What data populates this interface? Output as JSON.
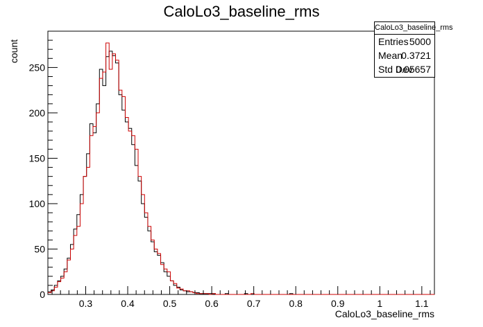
{
  "title": "CaloLo3_baseline_rms",
  "stats": {
    "name": "CaloLo3_baseline_rms",
    "rows": [
      {
        "label": "Entries",
        "value": "5000"
      },
      {
        "label": "Mean",
        "value": "0.3721"
      },
      {
        "label": "Std Dev",
        "value": "0.05657"
      }
    ]
  },
  "chart_data": {
    "type": "histogram",
    "title": "CaloLo3_baseline_rms",
    "xlabel": "CaloLo3_baseline_rms",
    "ylabel": "count",
    "xlim": [
      0.21,
      1.13
    ],
    "ylim": [
      0,
      290
    ],
    "bin_width": 0.00767,
    "x_ticks": [
      0.3,
      0.4,
      0.5,
      0.6,
      0.7,
      0.8,
      0.9,
      1,
      1.1
    ],
    "x_tick_labels": [
      "0.3",
      "0.4",
      "0.5",
      "0.6",
      "0.7",
      "0.8",
      "0.9",
      "1",
      "1.1"
    ],
    "y_ticks": [
      0,
      50,
      100,
      150,
      200,
      250
    ],
    "y_tick_labels": [
      "0",
      "50",
      "100",
      "150",
      "200",
      "250"
    ],
    "grid": false,
    "series": [
      {
        "color": "#000000",
        "values": [
          3,
          5,
          10,
          15,
          20,
          28,
          40,
          55,
          72,
          88,
          110,
          130,
          155,
          188,
          178,
          210,
          248,
          230,
          262,
          268,
          263,
          255,
          220,
          203,
          190,
          183,
          165,
          142,
          125,
          100,
          85,
          70,
          58,
          47,
          43,
          35,
          25,
          20,
          15,
          10,
          8,
          5,
          4,
          3,
          3,
          2,
          2,
          1,
          1,
          1,
          1,
          1,
          0,
          0,
          0,
          1,
          0,
          0,
          0,
          0,
          0,
          1,
          0,
          0,
          0,
          0,
          0,
          0,
          0,
          0,
          0,
          0,
          0,
          0,
          0,
          1,
          0,
          0,
          0,
          0,
          0,
          0,
          0,
          0,
          0,
          0,
          0,
          0,
          0,
          0,
          0,
          0,
          0,
          0,
          0,
          0,
          0,
          0,
          0,
          0,
          0,
          0,
          0,
          0,
          0,
          0,
          0,
          0,
          0,
          0,
          0,
          0,
          0,
          0,
          0,
          0,
          0,
          0,
          0,
          0
        ]
      },
      {
        "color": "#cc0000",
        "values": [
          2,
          4,
          8,
          14,
          18,
          25,
          38,
          50,
          65,
          75,
          100,
          130,
          140,
          175,
          185,
          200,
          238,
          245,
          277,
          248,
          265,
          258,
          225,
          218,
          195,
          180,
          175,
          160,
          130,
          110,
          90,
          75,
          60,
          50,
          45,
          33,
          28,
          25,
          15,
          12,
          7,
          6,
          4,
          4,
          3,
          2,
          1,
          1,
          1,
          1,
          0,
          1,
          0,
          0,
          0,
          0,
          0,
          0,
          0,
          0,
          0,
          0,
          0,
          1,
          0,
          0,
          0,
          0,
          0,
          0,
          0,
          0,
          0,
          0,
          0,
          0,
          0,
          0,
          0,
          0,
          0,
          0,
          0,
          0,
          0,
          0,
          0,
          0,
          0,
          0,
          0,
          0,
          0,
          0,
          0,
          0,
          0,
          0,
          0,
          0,
          0,
          0,
          0,
          0,
          0,
          0,
          0,
          0,
          0,
          0,
          0,
          0,
          0,
          0,
          0,
          0,
          0,
          0,
          0,
          0
        ]
      }
    ]
  }
}
